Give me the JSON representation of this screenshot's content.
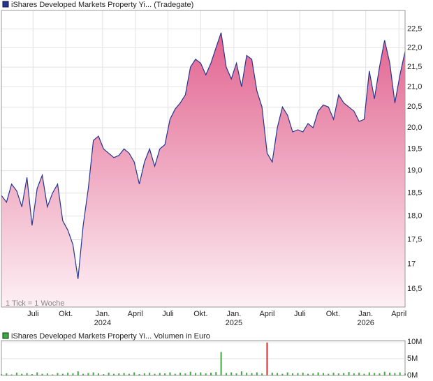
{
  "chart_data": [
    {
      "type": "area",
      "title": "iShares Developed Markets Property Yi... (Tradegate)",
      "note": "1 Tick = 1 Woche",
      "color": "#26358f",
      "fill_top": "#e26490",
      "log_scale": true,
      "grid": true,
      "values": [
        18.45,
        18.3,
        18.7,
        18.55,
        18.2,
        18.85,
        17.8,
        18.6,
        18.9,
        18.2,
        18.5,
        18.7,
        17.9,
        17.7,
        17.4,
        16.7,
        17.8,
        18.6,
        19.7,
        19.8,
        19.5,
        19.4,
        19.3,
        19.35,
        19.5,
        19.4,
        19.2,
        18.7,
        19.2,
        19.5,
        19.1,
        19.5,
        19.6,
        20.2,
        20.45,
        20.6,
        20.8,
        21.5,
        21.7,
        21.6,
        21.3,
        21.6,
        22.0,
        22.4,
        21.5,
        21.2,
        21.6,
        21.0,
        21.8,
        21.7,
        20.9,
        20.5,
        19.4,
        19.2,
        20.0,
        20.5,
        20.3,
        19.9,
        19.95,
        19.9,
        20.1,
        20.0,
        20.4,
        20.55,
        20.5,
        20.2,
        20.8,
        20.6,
        20.5,
        20.4,
        20.15,
        20.2,
        21.4,
        20.7,
        21.5,
        22.2,
        21.6,
        20.6,
        21.3,
        21.9
      ],
      "xlim": [
        0,
        79
      ],
      "xticks": [
        {
          "value": 6.2,
          "label": "Juli"
        },
        {
          "value": 12.6,
          "label": "Okt."
        },
        {
          "value": 19.8,
          "label": "Jan."
        },
        {
          "value": 26.2,
          "label": "April"
        },
        {
          "value": 32.6,
          "label": "Juli"
        },
        {
          "value": 39.0,
          "label": "Okt."
        },
        {
          "value": 45.5,
          "label": "Jan."
        },
        {
          "value": 52.0,
          "label": "April"
        },
        {
          "value": 58.4,
          "label": "Juli"
        },
        {
          "value": 64.9,
          "label": "Okt."
        },
        {
          "value": 71.3,
          "label": "Jan."
        },
        {
          "value": 77.8,
          "label": "April"
        }
      ],
      "year_labels": [
        {
          "value": 19.8,
          "label": "2024"
        },
        {
          "value": 45.5,
          "label": "2025"
        },
        {
          "value": 71.3,
          "label": "2026"
        }
      ],
      "ylim": [
        16.15,
        23.0
      ],
      "yticks": [
        {
          "value": 16.5,
          "label": "16,5"
        },
        17,
        {
          "value": 17.5,
          "label": "17,5"
        },
        {
          "value": 18,
          "label": "18,0"
        },
        {
          "value": 18.5,
          "label": "18,5"
        },
        {
          "value": 19,
          "label": "19,0"
        },
        {
          "value": 19.5,
          "label": "19,5"
        },
        {
          "value": 20,
          "label": "20,0"
        },
        {
          "value": 20.5,
          "label": "20,5"
        },
        {
          "value": 21,
          "label": "21,0"
        },
        {
          "value": 21.5,
          "label": "21,5"
        },
        {
          "value": 22,
          "label": "22,0"
        },
        {
          "value": 22.5,
          "label": "22,5"
        }
      ]
    },
    {
      "type": "bar",
      "title": "iShares Developed Markets Property Yi... Volumen in Euro",
      "color": "#3caa3c",
      "values": [
        400000,
        600000,
        300000,
        800000,
        500000,
        700000,
        400000,
        900000,
        500000,
        600000,
        300000,
        700000,
        500000,
        800000,
        600000,
        1200000,
        500000,
        700000,
        900000,
        600000,
        400000,
        800000,
        500000,
        600000,
        700000,
        500000,
        900000,
        400000,
        600000,
        800000,
        500000,
        700000,
        600000,
        900000,
        500000,
        800000,
        600000,
        1100000,
        700000,
        900000,
        600000,
        800000,
        1000000,
        7000000,
        700000,
        900000,
        600000,
        1200000,
        800000,
        700000,
        900000,
        600000,
        9800000,
        800000,
        700000,
        500000,
        900000,
        600000,
        700000,
        800000,
        500000,
        600000,
        900000,
        700000,
        500000,
        800000,
        600000,
        700000,
        1000000,
        600000,
        800000,
        500000,
        900000,
        700000,
        600000,
        1100000,
        800000,
        700000,
        900000,
        600000
      ],
      "xlim": [
        0,
        79
      ],
      "ylim": [
        0,
        10400000
      ],
      "yticks": [
        {
          "value": 0,
          "label": "0M"
        },
        {
          "value": 5000000,
          "label": "5M"
        },
        {
          "value": 10000000,
          "label": "10M"
        }
      ]
    }
  ]
}
